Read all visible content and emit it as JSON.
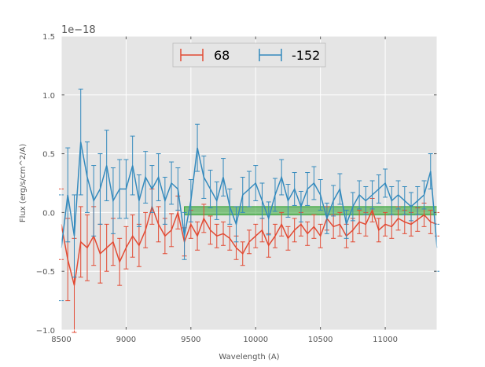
{
  "chart_data": {
    "type": "line",
    "title": "",
    "xlabel": "Wavelength (A)",
    "ylabel": "Flux (erg/s/cm^2/A)",
    "offset_text": "1e−18",
    "xlim": [
      8500,
      11400
    ],
    "ylim": [
      -1.0,
      1.5
    ],
    "x_ticks": [
      8500,
      9000,
      9500,
      10000,
      10500,
      11000
    ],
    "x_tick_labels": [
      "8500",
      "9000",
      "9500",
      "10000",
      "10500",
      "11000"
    ],
    "y_ticks": [
      -1.0,
      -0.5,
      0.0,
      0.5,
      1.0,
      1.5
    ],
    "y_tick_labels": [
      "−1.0",
      "−0.5",
      "0.0",
      "0.5",
      "1.0",
      "1.5"
    ],
    "grid": true,
    "legend_position": "top-center",
    "colors": {
      "background": "#e5e5e5",
      "grid": "#ffffff",
      "red": "#e24a33",
      "blue": "#348abd",
      "band": "#2ca02c"
    },
    "band": {
      "x": [
        9450,
        11400
      ],
      "y": [
        -0.02,
        0.05
      ],
      "description_color": "green"
    },
    "series": [
      {
        "name": "68",
        "color": "#e24a33",
        "x": [
          8500,
          8550,
          8600,
          8650,
          8700,
          8750,
          8800,
          8850,
          8900,
          8950,
          9000,
          9050,
          9100,
          9150,
          9200,
          9250,
          9300,
          9350,
          9400,
          9450,
          9500,
          9550,
          9600,
          9650,
          9700,
          9750,
          9800,
          9850,
          9900,
          9950,
          10000,
          10050,
          10100,
          10150,
          10200,
          10250,
          10300,
          10350,
          10400,
          10450,
          10500,
          10550,
          10600,
          10650,
          10700,
          10750,
          10800,
          10850,
          10900,
          10950,
          11000,
          11050,
          11100,
          11150,
          11200,
          11250,
          11300,
          11350,
          11400
        ],
        "y": [
          -0.1,
          -0.4,
          -0.62,
          -0.25,
          -0.3,
          -0.2,
          -0.35,
          -0.3,
          -0.25,
          -0.42,
          -0.3,
          -0.2,
          -0.28,
          -0.15,
          0.05,
          -0.1,
          -0.2,
          -0.15,
          0.0,
          -0.25,
          -0.1,
          -0.2,
          -0.05,
          -0.15,
          -0.2,
          -0.18,
          -0.22,
          -0.3,
          -0.35,
          -0.25,
          -0.2,
          -0.15,
          -0.28,
          -0.2,
          -0.1,
          -0.22,
          -0.15,
          -0.1,
          -0.18,
          -0.12,
          -0.2,
          -0.05,
          -0.12,
          -0.1,
          -0.2,
          -0.15,
          -0.08,
          -0.1,
          0.02,
          -0.15,
          -0.1,
          -0.12,
          -0.05,
          -0.08,
          -0.1,
          -0.06,
          -0.02,
          -0.08,
          -0.1
        ],
        "error": [
          0.3,
          0.35,
          0.4,
          0.3,
          0.28,
          0.25,
          0.25,
          0.2,
          0.2,
          0.2,
          0.18,
          0.18,
          0.18,
          0.15,
          0.15,
          0.15,
          0.15,
          0.14,
          0.14,
          0.12,
          0.12,
          0.12,
          0.12,
          0.12,
          0.1,
          0.1,
          0.1,
          0.1,
          0.1,
          0.1,
          0.1,
          0.1,
          0.1,
          0.1,
          0.1,
          0.1,
          0.1,
          0.1,
          0.1,
          0.1,
          0.1,
          0.1,
          0.1,
          0.1,
          0.1,
          0.1,
          0.1,
          0.1,
          0.1,
          0.1,
          0.1,
          0.1,
          0.1,
          0.1,
          0.1,
          0.1,
          0.1,
          0.1,
          0.1
        ]
      },
      {
        "name": "-152",
        "color": "#348abd",
        "x": [
          8500,
          8550,
          8600,
          8650,
          8700,
          8750,
          8800,
          8850,
          8900,
          8950,
          9000,
          9050,
          9100,
          9150,
          9200,
          9250,
          9300,
          9350,
          9400,
          9450,
          9500,
          9550,
          9600,
          9650,
          9700,
          9750,
          9800,
          9850,
          9900,
          9950,
          10000,
          10050,
          10100,
          10150,
          10200,
          10250,
          10300,
          10350,
          10400,
          10450,
          10500,
          10550,
          10600,
          10650,
          10700,
          10750,
          10800,
          10850,
          10900,
          10950,
          11000,
          11050,
          11100,
          11150,
          11200,
          11250,
          11300,
          11350,
          11400
        ],
        "y": [
          -0.3,
          0.15,
          -0.2,
          0.6,
          0.3,
          0.1,
          0.2,
          0.4,
          0.1,
          0.2,
          0.2,
          0.4,
          0.1,
          0.3,
          0.2,
          0.3,
          0.1,
          0.25,
          0.2,
          -0.2,
          0.1,
          0.55,
          0.3,
          0.2,
          0.1,
          0.3,
          0.05,
          -0.1,
          0.15,
          0.2,
          0.25,
          0.1,
          -0.05,
          0.15,
          0.3,
          0.1,
          0.2,
          0.05,
          0.2,
          0.25,
          0.15,
          -0.05,
          0.1,
          0.2,
          -0.1,
          0.05,
          0.15,
          0.1,
          0.15,
          0.2,
          0.25,
          0.1,
          0.15,
          0.1,
          0.05,
          0.1,
          0.15,
          0.35,
          -0.3
        ],
        "error": [
          0.45,
          0.4,
          0.35,
          0.45,
          0.3,
          0.3,
          0.3,
          0.3,
          0.28,
          0.25,
          0.25,
          0.25,
          0.22,
          0.22,
          0.2,
          0.2,
          0.2,
          0.18,
          0.18,
          0.2,
          0.18,
          0.2,
          0.18,
          0.16,
          0.16,
          0.16,
          0.15,
          0.15,
          0.15,
          0.15,
          0.15,
          0.15,
          0.14,
          0.14,
          0.15,
          0.14,
          0.14,
          0.13,
          0.14,
          0.14,
          0.13,
          0.13,
          0.13,
          0.13,
          0.12,
          0.12,
          0.12,
          0.12,
          0.12,
          0.12,
          0.12,
          0.12,
          0.12,
          0.12,
          0.12,
          0.12,
          0.12,
          0.15,
          0.2
        ]
      }
    ]
  }
}
